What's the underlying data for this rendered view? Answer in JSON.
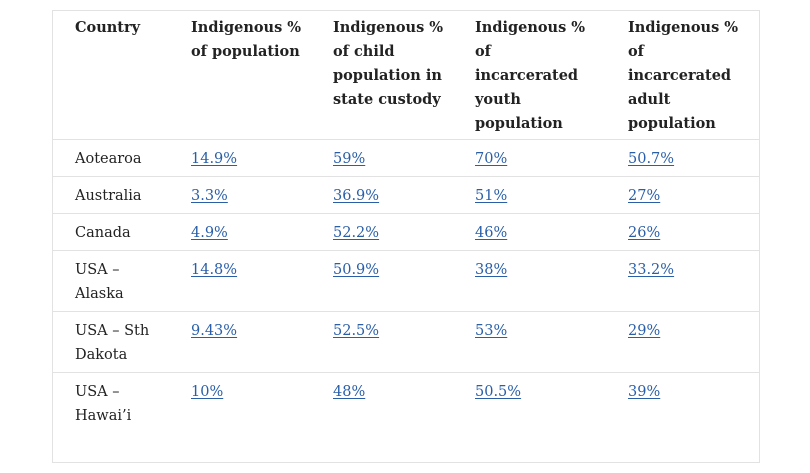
{
  "table": {
    "headers": [
      "Country",
      "Indigenous % of population",
      "Indigenous % of child population in state custody",
      "Indigenous % of incarcerated youth population",
      "Indigenous % of incarcerated adult population"
    ],
    "rows": [
      {
        "country": "Aotearoa",
        "values": [
          "14.9%",
          "59%",
          "70%",
          "50.7%"
        ]
      },
      {
        "country": "Australia",
        "values": [
          "3.3%",
          "36.9%",
          "51%",
          "27%"
        ]
      },
      {
        "country": "Canada",
        "values": [
          "4.9%",
          "52.2%",
          "46%",
          "26%"
        ]
      },
      {
        "country": "USA – Alaska",
        "values": [
          "14.8%",
          "50.9%",
          "38%",
          "33.2%"
        ]
      },
      {
        "country": "USA – Sth Dakota",
        "values": [
          "9.43%",
          "52.5%",
          "53%",
          "29%"
        ]
      },
      {
        "country": "USA – Hawai’i",
        "values": [
          "10%",
          "48%",
          "50.5%",
          "39%"
        ]
      }
    ]
  },
  "colors": {
    "link": "#2a5fa8",
    "border": "#e2e2e2",
    "text": "#222222"
  }
}
